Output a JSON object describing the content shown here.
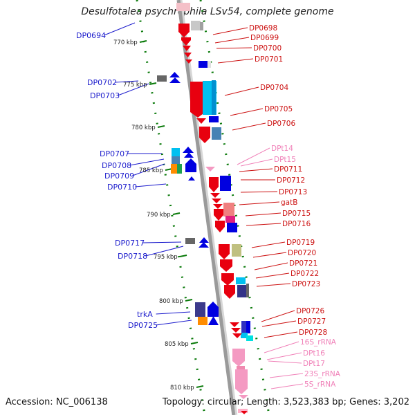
{
  "title": "Desulfotalea psychrophila LSv54, complete genome",
  "accession": "Accession: NC_006138",
  "topology": "Topology: circular; Length: 3,523,383 bp; Genes: 3,202",
  "colors": {
    "left_label": "#1a1acc",
    "right_label": "#cc1010",
    "rna_label": "#f080b8",
    "ruler": "#0a7a0a",
    "backbone": "#9a9a9a"
  },
  "scale_ticks": [
    "770 kbp",
    "775 kbp",
    "780 kbp",
    "785 kbp",
    "790 kbp",
    "795 kbp",
    "800 kbp",
    "805 kbp",
    "810 kbp"
  ],
  "left_labels": [
    "DP0694",
    "DP0702",
    "DP0703",
    "DP0707",
    "DP0708",
    "DP0709",
    "DP0710",
    "DP0717",
    "DP0718",
    "trkA",
    "DP0725"
  ],
  "right_labels": [
    "DP0698",
    "DP0699",
    "DP0700",
    "DP0701",
    "DP0704",
    "DP0705",
    "DP0706",
    "DPt14",
    "DPt15",
    "DP0711",
    "DP0712",
    "DP0713",
    "gatB",
    "DP0715",
    "DP0716",
    "DP0719",
    "DP0720",
    "DP0721",
    "DP0722",
    "DP0723",
    "DP0726",
    "DP0727",
    "DP0728",
    "16S_rRNA",
    "DPt16",
    "DPt17",
    "23S_rRNA",
    "5S_rRNA"
  ],
  "rna_right_labels": [
    "DPt14",
    "DPt15",
    "16S_rRNA",
    "DPt16",
    "DPt17",
    "23S_rRNA",
    "5S_rRNA"
  ]
}
